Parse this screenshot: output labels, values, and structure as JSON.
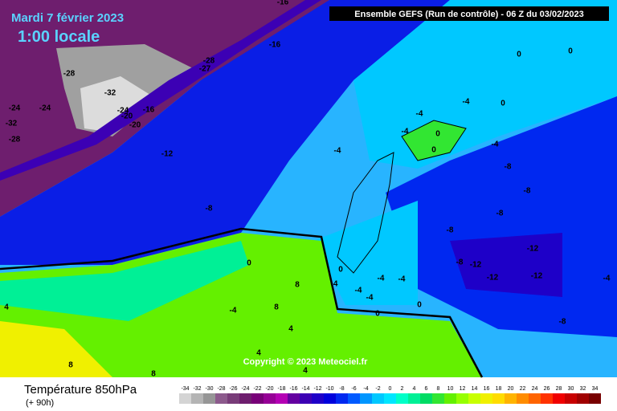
{
  "header": {
    "title": "Mardi 7 février 2023",
    "subtitle": "1:00 locale",
    "run": "Ensemble GEFS  (Run de contrôle)  -  06 Z du 03/02/2023"
  },
  "map": {
    "copyright": "Copyright © 2023 Meteociel.fr",
    "contour_labels": [
      "-16",
      "-16",
      "-28",
      "-27",
      "-28",
      "-32",
      "-24",
      "-24",
      "-24",
      "-20",
      "-16",
      "-20",
      "-32",
      "-28",
      "-12",
      "-8",
      "-4",
      "-4",
      "-4",
      "-4",
      "0",
      "0",
      "0",
      "0",
      "0",
      "-4",
      "-8",
      "-8",
      "-8",
      "-8",
      "-12",
      "-8",
      "-12",
      "-12",
      "-12",
      "-4",
      "-8",
      "0",
      "0",
      "-4",
      "-4",
      "-4",
      "-4",
      "-4",
      "0",
      "0",
      "-4",
      "8",
      "8",
      "4",
      "4",
      "4",
      "8",
      "8",
      "4"
    ]
  },
  "legend": {
    "title": "Température 850hPa",
    "lead_time": "(+ 90h)",
    "values": [
      -34,
      -32,
      -30,
      -28,
      -26,
      -24,
      -22,
      -20,
      -18,
      -16,
      -14,
      -12,
      -10,
      -8,
      -6,
      -4,
      -2,
      0,
      2,
      4,
      6,
      8,
      10,
      12,
      14,
      16,
      18,
      20,
      22,
      24,
      26,
      28,
      30,
      32,
      34
    ],
    "colors": [
      "#d4d4d4",
      "#b4b4b4",
      "#969696",
      "#8c5a8c",
      "#783c78",
      "#6e1e6e",
      "#780078",
      "#960096",
      "#b400b4",
      "#6400a0",
      "#3c00b4",
      "#1e00c8",
      "#0000dc",
      "#0028f0",
      "#005aff",
      "#0096ff",
      "#00c8ff",
      "#00e6ff",
      "#00ffc8",
      "#00f096",
      "#00dc64",
      "#32e632",
      "#64f000",
      "#96ff00",
      "#c8ff00",
      "#f0f000",
      "#ffdc00",
      "#ffb400",
      "#ff8c00",
      "#ff6400",
      "#ff3200",
      "#f00000",
      "#c80000",
      "#a00000",
      "#780000"
    ]
  }
}
